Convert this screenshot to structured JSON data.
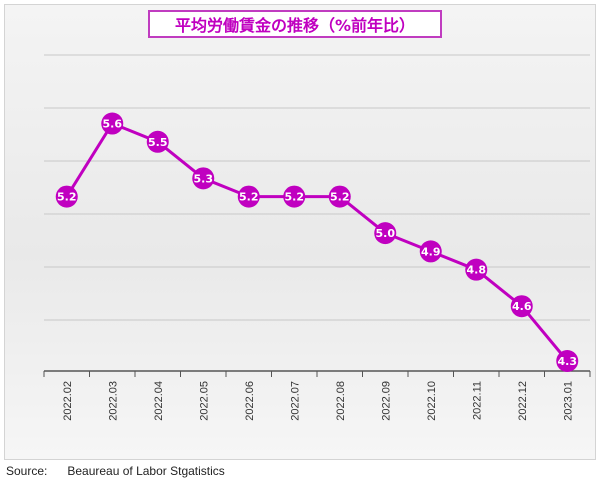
{
  "chart_data": {
    "type": "line",
    "title": "平均労働賃金の推移（%前年比）",
    "categories": [
      "2022.02",
      "2022.03",
      "2022.04",
      "2022.05",
      "2022.06",
      "2022.07",
      "2022.08",
      "2022.09",
      "2022.10",
      "2022.11",
      "2022.12",
      "2023.01"
    ],
    "series": [
      {
        "values": [
          5.2,
          5.6,
          5.5,
          5.3,
          5.2,
          5.2,
          5.2,
          5.0,
          4.9,
          4.8,
          4.6,
          4.3
        ]
      }
    ],
    "ylim": [
      4.3,
      5.8
    ],
    "grid": true,
    "data_labels": true,
    "colors": {
      "line": "#c000c0",
      "marker": "#c000c0",
      "label_text": "#ffffff",
      "grid": "#c8c8c8",
      "axis": "#555555"
    }
  },
  "source": {
    "label": "Source:",
    "text": "Beaureau of Labor Stgatistics"
  }
}
